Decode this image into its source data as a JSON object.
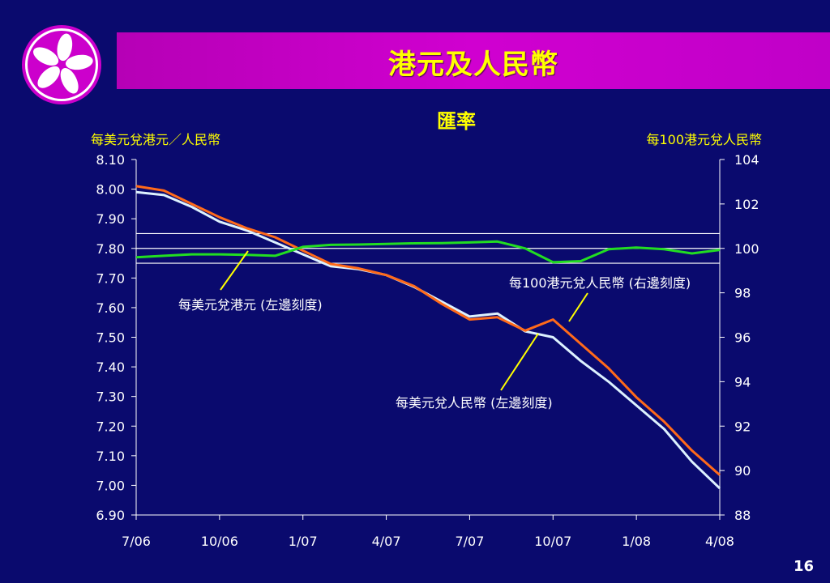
{
  "slide": {
    "title": "港元及人民幣",
    "page_number": "16",
    "logo": "bauhinia-icon",
    "colors": {
      "background": "#0a0a6e",
      "title_bar": "#c800c8",
      "title_text": "#ffff00",
      "axis_text": "#ffffff",
      "label_text": "#ffff00"
    }
  },
  "chart_data": {
    "type": "line",
    "title": "匯率",
    "y_left_label": "每美元兌港元／人民幣",
    "y_right_label": "每100港元兌人民幣",
    "x_ticks": [
      "7/06",
      "10/06",
      "1/07",
      "4/07",
      "7/07",
      "10/07",
      "1/08",
      "4/08"
    ],
    "x_range": [
      "2006-07",
      "2008-04"
    ],
    "y_left_range": [
      6.9,
      8.1
    ],
    "y_left_ticks": [
      "8.10",
      "8.00",
      "7.90",
      "7.80",
      "7.70",
      "7.60",
      "7.50",
      "7.40",
      "7.30",
      "7.20",
      "7.10",
      "7.00",
      "6.90"
    ],
    "y_right_range": [
      88,
      104
    ],
    "y_right_ticks": [
      "104",
      "102",
      "100",
      "98",
      "96",
      "94",
      "92",
      "90",
      "88"
    ],
    "reference_lines_left": [
      7.85,
      7.8,
      7.75
    ],
    "grid": false,
    "annotations": [
      {
        "text": "每美元兌港元 (左邊刻度)",
        "series": "usd_hkd"
      },
      {
        "text": "每100港元兌人民幣 (右邊刻度)",
        "series": "hkd_cny"
      },
      {
        "text": "每美元兌人民幣 (左邊刻度)",
        "series": "usd_cny"
      }
    ],
    "series": [
      {
        "key": "usd_hkd",
        "axis": "left",
        "color": "#22dd22",
        "x": [
          "2006-07",
          "2006-08",
          "2006-09",
          "2006-10",
          "2006-11",
          "2006-12",
          "2007-01",
          "2007-02",
          "2007-03",
          "2007-04",
          "2007-05",
          "2007-06",
          "2007-07",
          "2007-08",
          "2007-09",
          "2007-10",
          "2007-11",
          "2007-12",
          "2008-01",
          "2008-02",
          "2008-03",
          "2008-04"
        ],
        "values": [
          7.77,
          7.775,
          7.78,
          7.78,
          7.778,
          7.775,
          7.805,
          7.812,
          7.813,
          7.815,
          7.817,
          7.818,
          7.82,
          7.823,
          7.8,
          7.753,
          7.757,
          7.797,
          7.803,
          7.797,
          7.783,
          7.795
        ]
      },
      {
        "key": "usd_cny",
        "axis": "left",
        "color": "#ddf2ff",
        "x": [
          "2006-07",
          "2006-08",
          "2006-09",
          "2006-10",
          "2006-11",
          "2006-12",
          "2007-01",
          "2007-02",
          "2007-03",
          "2007-04",
          "2007-05",
          "2007-06",
          "2007-07",
          "2007-08",
          "2007-09",
          "2007-10",
          "2007-11",
          "2007-12",
          "2008-01",
          "2008-02",
          "2008-03",
          "2008-04"
        ],
        "values": [
          7.99,
          7.98,
          7.94,
          7.89,
          7.86,
          7.82,
          7.78,
          7.74,
          7.73,
          7.71,
          7.67,
          7.62,
          7.57,
          7.58,
          7.52,
          7.5,
          7.42,
          7.35,
          7.27,
          7.19,
          7.08,
          6.99
        ]
      },
      {
        "key": "hkd_cny",
        "axis": "right",
        "color": "#ff6a1a",
        "x": [
          "2006-07",
          "2006-08",
          "2006-09",
          "2006-10",
          "2006-11",
          "2006-12",
          "2007-01",
          "2007-02",
          "2007-03",
          "2007-04",
          "2007-05",
          "2007-06",
          "2007-07",
          "2007-08",
          "2007-09",
          "2007-10",
          "2007-11",
          "2007-12",
          "2008-01",
          "2008-02",
          "2008-03",
          "2008-04"
        ],
        "values": [
          102.8,
          102.6,
          102.0,
          101.4,
          100.9,
          100.5,
          99.9,
          99.3,
          99.1,
          98.8,
          98.3,
          97.5,
          96.8,
          96.9,
          96.3,
          96.8,
          95.7,
          94.6,
          93.3,
          92.2,
          90.9,
          89.8
        ]
      }
    ]
  }
}
